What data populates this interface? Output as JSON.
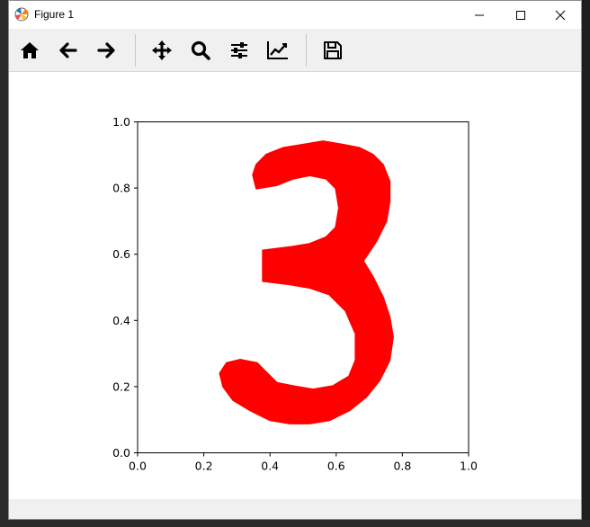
{
  "window": {
    "title": "Figure 1"
  },
  "titlebar_buttons": [
    "minimize-icon",
    "maximize-icon",
    "close-icon"
  ],
  "toolbar": {
    "buttons": [
      {
        "name": "home-button",
        "icon": "home-icon"
      },
      {
        "name": "back-button",
        "icon": "arrow-left-icon"
      },
      {
        "name": "forward-button",
        "icon": "arrow-right-icon"
      },
      {
        "name": "pan-button",
        "icon": "move-icon"
      },
      {
        "name": "zoom-button",
        "icon": "magnifier-icon"
      },
      {
        "name": "subplots-button",
        "icon": "sliders-icon"
      },
      {
        "name": "edit-axes-button",
        "icon": "chart-line-icon"
      },
      {
        "name": "save-button",
        "icon": "floppy-disk-icon"
      }
    ]
  },
  "colors": {
    "shape_fill": "#ff0000",
    "toolbar_bg": "#f0f0f0",
    "axes_edge": "#000000"
  },
  "chart_data": {
    "type": "area",
    "title": "",
    "xlabel": "",
    "ylabel": "",
    "xlim": [
      0.0,
      1.0
    ],
    "ylim": [
      0.0,
      1.0
    ],
    "x_ticks": [
      "0.0",
      "0.2",
      "0.4",
      "0.6",
      "0.8",
      "1.0"
    ],
    "y_ticks": [
      "0.0",
      "0.2",
      "0.4",
      "0.6",
      "0.8",
      "1.0"
    ],
    "grid": false,
    "legend": "none",
    "series": [
      {
        "fill": "#ff0000",
        "x": [
          0.36,
          0.35,
          0.36,
          0.39,
          0.44,
          0.5,
          0.56,
          0.62,
          0.67,
          0.71,
          0.74,
          0.76,
          0.76,
          0.75,
          0.72,
          0.68,
          0.71,
          0.74,
          0.76,
          0.77,
          0.76,
          0.73,
          0.69,
          0.64,
          0.58,
          0.52,
          0.46,
          0.4,
          0.34,
          0.29,
          0.26,
          0.25,
          0.27,
          0.31,
          0.36,
          0.39,
          0.42,
          0.47,
          0.53,
          0.59,
          0.64,
          0.66,
          0.66,
          0.63,
          0.58,
          0.52,
          0.46,
          0.38,
          0.38,
          0.46,
          0.52,
          0.57,
          0.6,
          0.61,
          0.6,
          0.57,
          0.52,
          0.47,
          0.42,
          0.36
        ],
        "y": [
          0.8,
          0.84,
          0.87,
          0.9,
          0.92,
          0.93,
          0.94,
          0.93,
          0.92,
          0.9,
          0.87,
          0.82,
          0.76,
          0.7,
          0.64,
          0.58,
          0.53,
          0.47,
          0.41,
          0.35,
          0.28,
          0.22,
          0.17,
          0.13,
          0.1,
          0.09,
          0.09,
          0.1,
          0.13,
          0.16,
          0.2,
          0.24,
          0.27,
          0.28,
          0.27,
          0.24,
          0.21,
          0.2,
          0.19,
          0.2,
          0.23,
          0.28,
          0.36,
          0.43,
          0.48,
          0.5,
          0.51,
          0.52,
          0.61,
          0.62,
          0.63,
          0.65,
          0.68,
          0.74,
          0.8,
          0.83,
          0.84,
          0.83,
          0.81,
          0.8
        ]
      }
    ]
  }
}
